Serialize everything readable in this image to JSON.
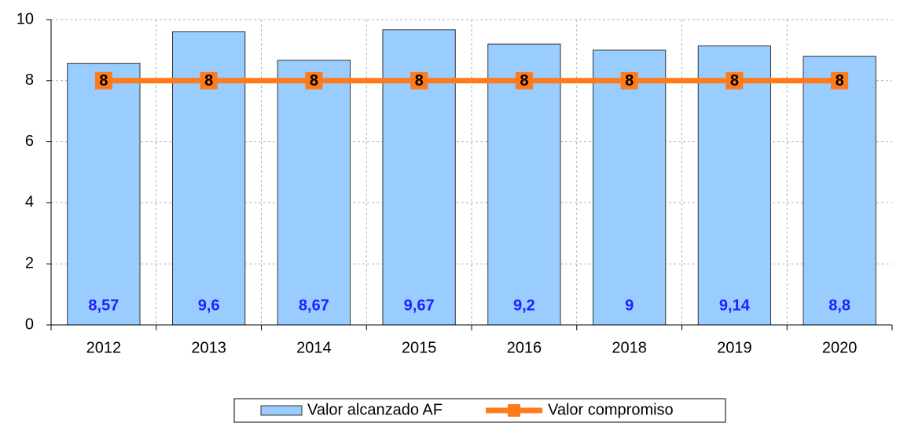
{
  "chart_data": {
    "type": "bar",
    "categories": [
      "2012",
      "2013",
      "2014",
      "2015",
      "2016",
      "2018",
      "2019",
      "2020"
    ],
    "series": [
      {
        "name": "Valor alcanzado AF",
        "type": "bar",
        "color": "#99ccff",
        "values": [
          8.57,
          9.6,
          8.67,
          9.67,
          9.2,
          9,
          9.14,
          8.8
        ],
        "value_labels": [
          "8,57",
          "9,6",
          "8,67",
          "9,67",
          "9,2",
          "9",
          "9,14",
          "8,8"
        ],
        "label_color": "#1f1fff"
      },
      {
        "name": "Valor compromiso",
        "type": "line",
        "color": "#ff7a1a",
        "values": [
          8,
          8,
          8,
          8,
          8,
          8,
          8,
          8
        ]
      }
    ],
    "ylim": [
      0,
      10
    ],
    "yticks": [
      0,
      2,
      4,
      6,
      8,
      10
    ],
    "grid": true,
    "legend": "bottom"
  }
}
